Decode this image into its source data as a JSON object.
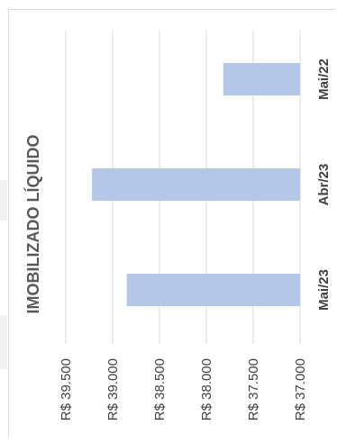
{
  "chart_data": {
    "type": "bar",
    "orientation": "horizontal-rotated",
    "title": "IMOBILIZADO LÍQUIDO",
    "categories": [
      "Mai/22",
      "Abr/23",
      "Mai/23"
    ],
    "values": [
      37820,
      39220,
      38850
    ],
    "ylim": [
      37000,
      39500
    ],
    "tick_values": [
      39500,
      39000,
      38500,
      38000,
      37500,
      37000
    ],
    "tick_labels": [
      "R$ 39.500",
      "R$ 39.000",
      "R$ 38.500",
      "R$ 38.000",
      "R$ 37.500",
      "R$ 37.000"
    ],
    "grid": true,
    "bar_color": "#b4c7e7",
    "legend": "none"
  }
}
